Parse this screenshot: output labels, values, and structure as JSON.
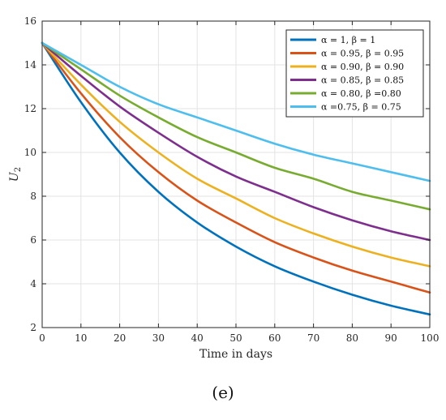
{
  "caption": "(e)",
  "chart_data": {
    "type": "line",
    "xlabel": "Time in days",
    "ylabel_main": "U",
    "ylabel_sub": "2",
    "xlim": [
      0,
      100
    ],
    "ylim": [
      2,
      16
    ],
    "xticks": [
      0,
      10,
      20,
      30,
      40,
      50,
      60,
      70,
      80,
      90,
      100
    ],
    "yticks": [
      2,
      4,
      6,
      8,
      10,
      12,
      14,
      16
    ],
    "grid": true,
    "legend_position": "top-right",
    "x": [
      0,
      10,
      20,
      30,
      40,
      50,
      60,
      70,
      80,
      90,
      100
    ],
    "series": [
      {
        "name": "α = 1, β = 1",
        "color": "#0072BD",
        "values": [
          15.0,
          12.3,
          10.0,
          8.2,
          6.8,
          5.7,
          4.8,
          4.1,
          3.5,
          3.0,
          2.6
        ]
      },
      {
        "name": "α = 0.95, β = 0.95",
        "color": "#D95319",
        "values": [
          15.0,
          12.7,
          10.7,
          9.1,
          7.8,
          6.8,
          5.9,
          5.2,
          4.6,
          4.1,
          3.6
        ]
      },
      {
        "name": "α = 0.90, β = 0.90",
        "color": "#EDB120",
        "values": [
          15.0,
          13.1,
          11.4,
          10.0,
          8.8,
          7.9,
          7.0,
          6.3,
          5.7,
          5.2,
          4.8
        ]
      },
      {
        "name": "α = 0.85, β = 0.85",
        "color": "#7E2F8E",
        "values": [
          15.0,
          13.5,
          12.1,
          10.9,
          9.8,
          8.9,
          8.2,
          7.5,
          6.9,
          6.4,
          6.0
        ]
      },
      {
        "name": "α = 0.80, β =0.80",
        "color": "#77AC30",
        "values": [
          15.0,
          13.8,
          12.6,
          11.6,
          10.7,
          10.0,
          9.3,
          8.8,
          8.2,
          7.8,
          7.4
        ]
      },
      {
        "name": "α =0.75, β = 0.75",
        "color": "#4DBEEE",
        "values": [
          15.0,
          14.0,
          13.0,
          12.2,
          11.6,
          11.0,
          10.4,
          9.9,
          9.5,
          9.1,
          8.7
        ]
      }
    ]
  }
}
